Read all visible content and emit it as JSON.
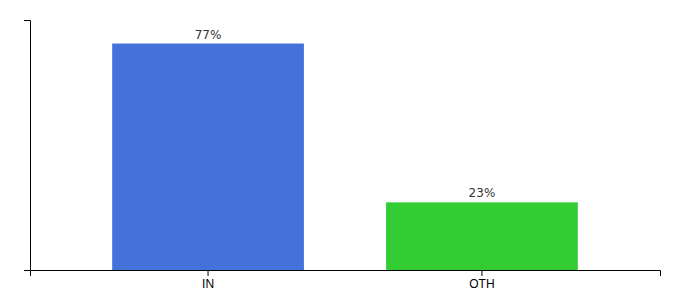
{
  "chart_data": {
    "type": "bar",
    "categories": [
      "IN",
      "OTH"
    ],
    "values": [
      77,
      23
    ],
    "value_labels": [
      "77%",
      "23%"
    ],
    "colors": [
      "#4472db",
      "#33cc33"
    ],
    "ylim": [
      0,
      85
    ],
    "data_labels": true,
    "tick_labels": "x",
    "grid": false
  }
}
